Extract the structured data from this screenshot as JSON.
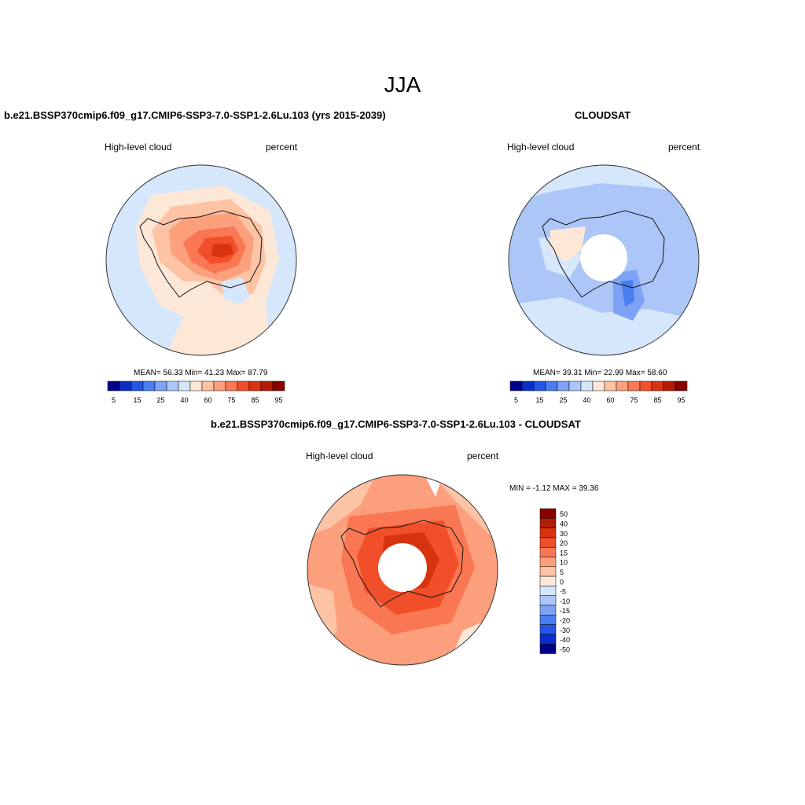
{
  "figure": {
    "season_title": "JJA"
  },
  "panel_model": {
    "title": "b.e21.BSSP370cmip6.f09_g17.CMIP6-SSP3-7.0-SSP1-2.6Lu.103 (yrs 2015-2039)",
    "variable": "High-level cloud",
    "units": "percent",
    "stats": "MEAN=  56.33  Min=  41.23  Max=  87.79",
    "colorbar_labels": [
      "5",
      "15",
      "25",
      "40",
      "60",
      "75",
      "85",
      "95"
    ]
  },
  "panel_obs": {
    "title": "CLOUDSAT",
    "variable": "High-level cloud",
    "units": "percent",
    "stats": "MEAN=  39.31  Min=  22.99  Max=  58.60",
    "colorbar_labels": [
      "5",
      "15",
      "25",
      "40",
      "60",
      "75",
      "85",
      "95"
    ]
  },
  "panel_diff": {
    "title": "b.e21.BSSP370cmip6.f09_g17.CMIP6-SSP3-7.0-SSP1-2.6Lu.103 - CLOUDSAT",
    "variable": "High-level cloud",
    "units": "percent",
    "minmax": "MIN =  -1.12 MAX =  39.36",
    "colorbar_labels": [
      "50",
      "40",
      "30",
      "20",
      "15",
      "10",
      "5",
      "0",
      "-5",
      "-10",
      "-15",
      "-20",
      "-30",
      "-40",
      "-50"
    ]
  },
  "colors": {
    "abs_scale": [
      "#00008b",
      "#0a2fc8",
      "#2456e6",
      "#4a7df0",
      "#7ea2f5",
      "#adc6f8",
      "#d6e6fb",
      "#fde8d8",
      "#fdc3a5",
      "#fb9f7c",
      "#f97752",
      "#f14f2a",
      "#d8330f",
      "#b21c05",
      "#8b0000"
    ],
    "diff_scale": [
      "#8b0000",
      "#b21c05",
      "#d8330f",
      "#f14f2a",
      "#f97752",
      "#fb9f7c",
      "#fdc3a5",
      "#fde8d8",
      "#d6e6fb",
      "#adc6f8",
      "#7ea2f5",
      "#4a7df0",
      "#2456e6",
      "#0a2fc8",
      "#00008b"
    ]
  }
}
